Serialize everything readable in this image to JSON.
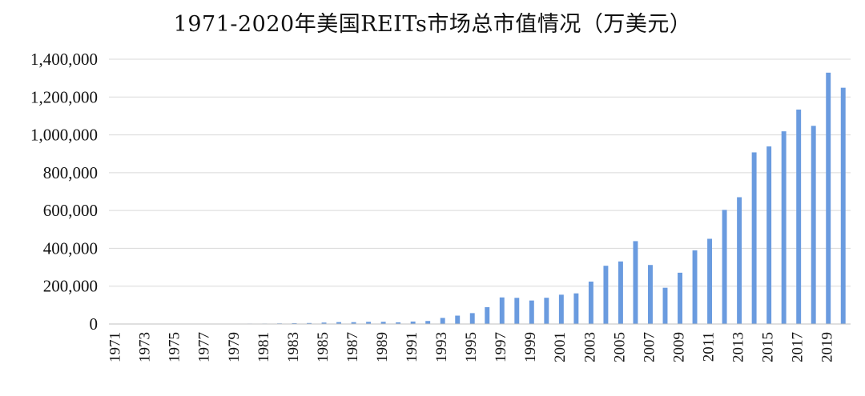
{
  "chart_data": {
    "type": "bar",
    "title": "1971-2020年美国REITs市场总市值情况（万美元）",
    "xlabel": "",
    "ylabel": "",
    "ylim": [
      0,
      1400000
    ],
    "y_ticks": [
      0,
      200000,
      400000,
      600000,
      800000,
      1000000,
      1200000,
      1400000
    ],
    "y_tick_labels": [
      "0",
      "200,000",
      "400,000",
      "600,000",
      "800,000",
      "1,000,000",
      "1,200,000",
      "1,400,000"
    ],
    "grid": true,
    "legend": "none",
    "bar_color": "#6a9bdf",
    "x_tick_labels": [
      "1971",
      "1973",
      "1975",
      "1977",
      "1979",
      "1981",
      "1983",
      "1985",
      "1987",
      "1989",
      "1991",
      "1993",
      "1995",
      "1997",
      "1999",
      "2001",
      "2003",
      "2005",
      "2007",
      "2009",
      "2011",
      "2013",
      "2015",
      "2017",
      "2019"
    ],
    "categories": [
      "1971",
      "1972",
      "1973",
      "1974",
      "1975",
      "1976",
      "1977",
      "1978",
      "1979",
      "1980",
      "1981",
      "1982",
      "1983",
      "1984",
      "1985",
      "1986",
      "1987",
      "1988",
      "1989",
      "1990",
      "1991",
      "1992",
      "1993",
      "1994",
      "1995",
      "1996",
      "1997",
      "1998",
      "1999",
      "2000",
      "2001",
      "2002",
      "2003",
      "2004",
      "2005",
      "2006",
      "2007",
      "2008",
      "2009",
      "2010",
      "2011",
      "2012",
      "2013",
      "2014",
      "2015",
      "2016",
      "2017",
      "2018",
      "2019",
      "2020"
    ],
    "values": [
      1494,
      1881,
      1394,
      712,
      900,
      1308,
      1528,
      1412,
      1754,
      2299,
      2439,
      3299,
      4257,
      5085,
      7674,
      9924,
      9702,
      11435,
      11662,
      8737,
      12968,
      15912,
      32159,
      44306,
      57541,
      88776,
      140534,
      138301,
      124262,
      138715,
      154899,
      161937,
      224212,
      307895,
      330691,
      438071,
      312009,
      191651,
      271199,
      389295,
      450501,
      603416,
      670334,
      907425,
      938852,
      1018730,
      1133698,
      1047641,
      1328806,
      1249184
    ]
  }
}
